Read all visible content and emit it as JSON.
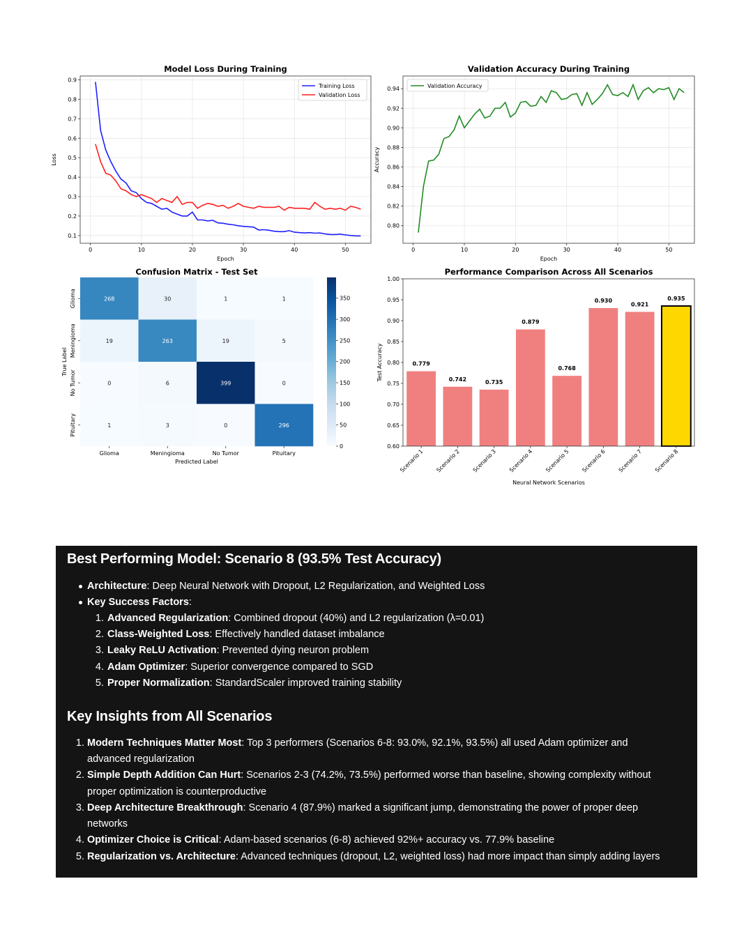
{
  "colors": {
    "training": "#1f1fff",
    "validation_loss": "#ff1f1f",
    "accuracy": "#228b22",
    "bar": "#f08080",
    "bar_best": "#ffd700",
    "panel_bg": "#141414"
  },
  "chart_data": [
    {
      "type": "line",
      "title": "Model Loss During Training",
      "xlabel": "Epoch",
      "ylabel": "Loss",
      "xlim": [
        -2,
        55
      ],
      "ylim": [
        0.06,
        0.92
      ],
      "xticks": [
        0,
        10,
        20,
        30,
        40,
        50
      ],
      "yticks": [
        0.1,
        0.2,
        0.3,
        0.4,
        0.5,
        0.6,
        0.7,
        0.8,
        0.9
      ],
      "grid": true,
      "legend": "upper right",
      "x": [
        1,
        2,
        3,
        4,
        5,
        6,
        7,
        8,
        9,
        10,
        11,
        12,
        13,
        14,
        15,
        16,
        17,
        18,
        19,
        20,
        21,
        22,
        23,
        24,
        25,
        26,
        27,
        28,
        29,
        30,
        31,
        32,
        33,
        34,
        35,
        36,
        37,
        38,
        39,
        40,
        41,
        42,
        43,
        44,
        45,
        46,
        47,
        48,
        49,
        50,
        51,
        52,
        53
      ],
      "series": [
        {
          "name": "Training Loss",
          "values": [
            0.89,
            0.64,
            0.54,
            0.48,
            0.43,
            0.39,
            0.37,
            0.33,
            0.32,
            0.29,
            0.27,
            0.265,
            0.25,
            0.235,
            0.24,
            0.22,
            0.21,
            0.2,
            0.2,
            0.22,
            0.18,
            0.18,
            0.175,
            0.178,
            0.165,
            0.163,
            0.158,
            0.155,
            0.15,
            0.147,
            0.145,
            0.143,
            0.128,
            0.13,
            0.127,
            0.122,
            0.12,
            0.12,
            0.125,
            0.117,
            0.115,
            0.113,
            0.115,
            0.112,
            0.113,
            0.108,
            0.105,
            0.105,
            0.107,
            0.103,
            0.1,
            0.098,
            0.098
          ]
        },
        {
          "name": "Validation Loss",
          "values": [
            0.57,
            0.48,
            0.42,
            0.41,
            0.38,
            0.34,
            0.33,
            0.31,
            0.3,
            0.31,
            0.3,
            0.29,
            0.27,
            0.29,
            0.28,
            0.27,
            0.3,
            0.26,
            0.27,
            0.27,
            0.24,
            0.255,
            0.265,
            0.26,
            0.25,
            0.255,
            0.24,
            0.25,
            0.265,
            0.25,
            0.245,
            0.24,
            0.25,
            0.245,
            0.245,
            0.245,
            0.25,
            0.23,
            0.245,
            0.24,
            0.24,
            0.24,
            0.235,
            0.27,
            0.25,
            0.235,
            0.24,
            0.235,
            0.24,
            0.23,
            0.25,
            0.245,
            0.235
          ]
        }
      ]
    },
    {
      "type": "line",
      "title": "Validation Accuracy During Training",
      "xlabel": "Epoch",
      "ylabel": "Accuracy",
      "xlim": [
        -2,
        55
      ],
      "ylim": [
        0.782,
        0.953
      ],
      "xticks": [
        0,
        10,
        20,
        30,
        40,
        50
      ],
      "yticks": [
        0.8,
        0.82,
        0.84,
        0.86,
        0.88,
        0.9,
        0.92,
        0.94
      ],
      "grid": true,
      "legend": "upper left",
      "x": [
        1,
        2,
        3,
        4,
        5,
        6,
        7,
        8,
        9,
        10,
        11,
        12,
        13,
        14,
        15,
        16,
        17,
        18,
        19,
        20,
        21,
        22,
        23,
        24,
        25,
        26,
        27,
        28,
        29,
        30,
        31,
        32,
        33,
        34,
        35,
        36,
        37,
        38,
        39,
        40,
        41,
        42,
        43,
        44,
        45,
        46,
        47,
        48,
        49,
        50,
        51,
        52,
        53
      ],
      "series": [
        {
          "name": "Validation Accuracy",
          "values": [
            0.793,
            0.84,
            0.866,
            0.867,
            0.873,
            0.889,
            0.891,
            0.898,
            0.912,
            0.9,
            0.907,
            0.914,
            0.919,
            0.91,
            0.912,
            0.92,
            0.92,
            0.926,
            0.911,
            0.915,
            0.926,
            0.927,
            0.922,
            0.923,
            0.932,
            0.926,
            0.938,
            0.936,
            0.929,
            0.93,
            0.934,
            0.935,
            0.923,
            0.936,
            0.924,
            0.929,
            0.935,
            0.944,
            0.934,
            0.933,
            0.936,
            0.932,
            0.944,
            0.929,
            0.938,
            0.941,
            0.936,
            0.94,
            0.939,
            0.941,
            0.929,
            0.94,
            0.936
          ]
        }
      ]
    },
    {
      "type": "heatmap",
      "title": "Confusion Matrix - Test Set",
      "xlabel": "Predicted Label",
      "ylabel": "True Label",
      "labels": [
        "Glioma",
        "Meningioma",
        "No Tumor",
        "Pituitary"
      ],
      "matrix": [
        [
          268,
          30,
          1,
          1
        ],
        [
          19,
          263,
          19,
          5
        ],
        [
          0,
          6,
          399,
          0
        ],
        [
          1,
          3,
          0,
          296
        ]
      ],
      "colorbar_ticks": [
        0,
        50,
        100,
        150,
        200,
        250,
        300,
        350
      ],
      "vmax": 399
    },
    {
      "type": "bar",
      "title": "Performance Comparison Across All Scenarios",
      "xlabel": "Neural Network Scenarios",
      "ylabel": "Test Accuracy",
      "categories": [
        "Scenario 1",
        "Scenario 2",
        "Scenario 3",
        "Scenario 4",
        "Scenario 5",
        "Scenario 6",
        "Scenario 7",
        "Scenario 8"
      ],
      "values": [
        0.779,
        0.742,
        0.735,
        0.879,
        0.768,
        0.93,
        0.921,
        0.935
      ],
      "value_labels": [
        "0.779",
        "0.742",
        "0.735",
        "0.879",
        "0.768",
        "0.930",
        "0.921",
        "0.935"
      ],
      "highlight": "Scenario 8",
      "ylim": [
        0.6,
        1.0
      ],
      "yticks": [
        0.6,
        0.65,
        0.7,
        0.75,
        0.8,
        0.85,
        0.9,
        0.95,
        1.0
      ],
      "ytick_labels": [
        "0.60",
        "0.65",
        "0.70",
        "0.75",
        "0.80",
        "0.85",
        "0.90",
        "0.95",
        "1.00"
      ]
    }
  ],
  "summary": {
    "best_title": "Best Performing Model: Scenario 8 (93.5% Test Accuracy)",
    "bullets": [
      {
        "label": "Architecture",
        "text": ": Deep Neural Network with Dropout, L2 Regularization, and Weighted Loss"
      },
      {
        "label": "Key Success Factors",
        "text": ":"
      }
    ],
    "factors": [
      {
        "num": "1.",
        "label": "Advanced Regularization",
        "text": ": Combined dropout (40%) and L2 regularization (λ=0.01)"
      },
      {
        "num": "2.",
        "label": "Class-Weighted Loss",
        "text": ": Effectively handled dataset imbalance"
      },
      {
        "num": "3.",
        "label": "Leaky ReLU Activation",
        "text": ": Prevented dying neuron problem"
      },
      {
        "num": "4.",
        "label": "Adam Optimizer",
        "text": ": Superior convergence compared to SGD"
      },
      {
        "num": "5.",
        "label": "Proper Normalization",
        "text": ": StandardScaler improved training stability"
      }
    ],
    "insights_title": "Key Insights from All Scenarios",
    "insights": [
      {
        "num": "1.",
        "label": "Modern Techniques Matter Most",
        "text": ": Top 3 performers (Scenarios 6-8: 93.0%, 92.1%, 93.5%) all used Adam optimizer and",
        "cont": "advanced regularization"
      },
      {
        "num": "2.",
        "label": "Simple Depth Addition Can Hurt",
        "text": ": Scenarios 2-3 (74.2%, 73.5%) performed worse than baseline, showing complexity without",
        "cont": "proper optimization is counterproductive"
      },
      {
        "num": "3.",
        "label": "Deep Architecture Breakthrough",
        "text": ": Scenario 4 (87.9%) marked a significant jump, demonstrating the power of proper deep",
        "cont": "networks"
      },
      {
        "num": "4.",
        "label": "Optimizer Choice is Critical",
        "text": ": Adam-based scenarios (6-8) achieved 92%+ accuracy vs. 77.9% baseline",
        "cont": ""
      },
      {
        "num": "5.",
        "label": "Regularization vs. Architecture",
        "text": ": Advanced techniques (dropout, L2, weighted loss) had more impact than simply adding layers",
        "cont": ""
      }
    ]
  }
}
